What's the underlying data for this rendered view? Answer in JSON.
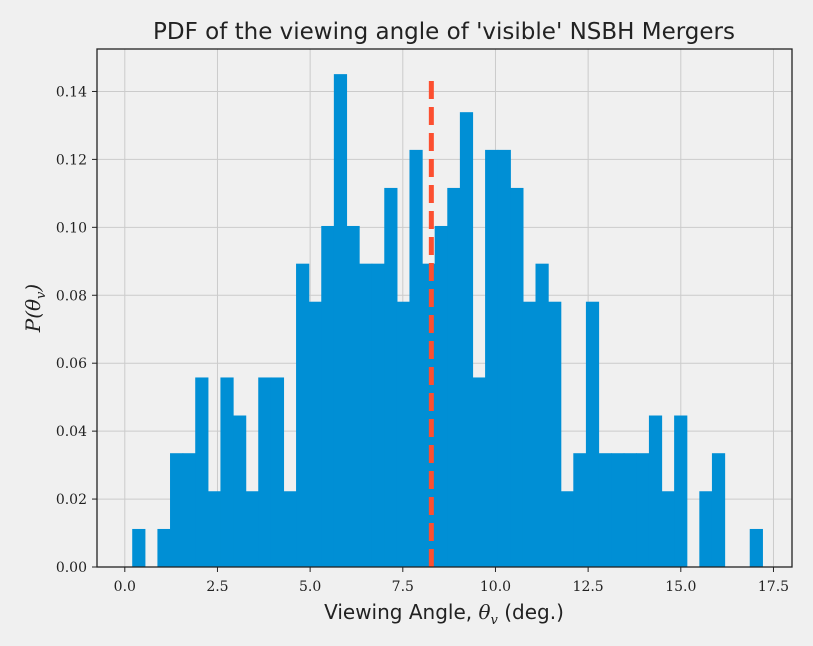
{
  "chart_data": {
    "type": "bar",
    "title": "PDF of the viewing angle of 'visible' NSBH Mergers",
    "xlabel_prefix": "Viewing Angle, ",
    "xlabel_symbol": "θ",
    "xlabel_sub": "v",
    "xlabel_suffix": " (deg.)",
    "ylabel_prefix": "P(",
    "ylabel_symbol": "θ",
    "ylabel_sub": "v",
    "ylabel_suffix": ")",
    "xlim": [
      -0.75,
      18.0
    ],
    "ylim": [
      0,
      0.1525
    ],
    "xticks": [
      0.0,
      2.5,
      5.0,
      7.5,
      10.0,
      12.5,
      15.0,
      17.5
    ],
    "xtick_labels": [
      "0.0",
      "2.5",
      "5.0",
      "7.5",
      "10.0",
      "12.5",
      "15.0",
      "17.5"
    ],
    "yticks": [
      0.0,
      0.02,
      0.04,
      0.06,
      0.08,
      0.1,
      0.12,
      0.14
    ],
    "ytick_labels": [
      "0.00",
      "0.02",
      "0.04",
      "0.06",
      "0.08",
      "0.10",
      "0.12",
      "0.14"
    ],
    "grid": true,
    "bin_start": 0.2,
    "bin_width": 0.34,
    "values": [
      0.0112,
      0,
      0.0112,
      0.0335,
      0.0335,
      0.0558,
      0.0223,
      0.0558,
      0.0446,
      0.0223,
      0.0558,
      0.0558,
      0.0223,
      0.0893,
      0.0781,
      0.1004,
      0.1451,
      0.1004,
      0.0893,
      0.0893,
      0.1116,
      0.0781,
      0.1228,
      0.0893,
      0.1004,
      0.1116,
      0.1339,
      0.0558,
      0.1228,
      0.1228,
      0.1116,
      0.0781,
      0.0893,
      0.0781,
      0.0223,
      0.0335,
      0.0781,
      0.0335,
      0.0335,
      0.0335,
      0.0335,
      0.0446,
      0.0223,
      0.0446,
      0,
      0.0223,
      0.0335,
      0,
      0,
      0.0112
    ],
    "bar_color": "#008fd5",
    "vline_x": 8.27,
    "vline_color": "#fc4f30"
  }
}
